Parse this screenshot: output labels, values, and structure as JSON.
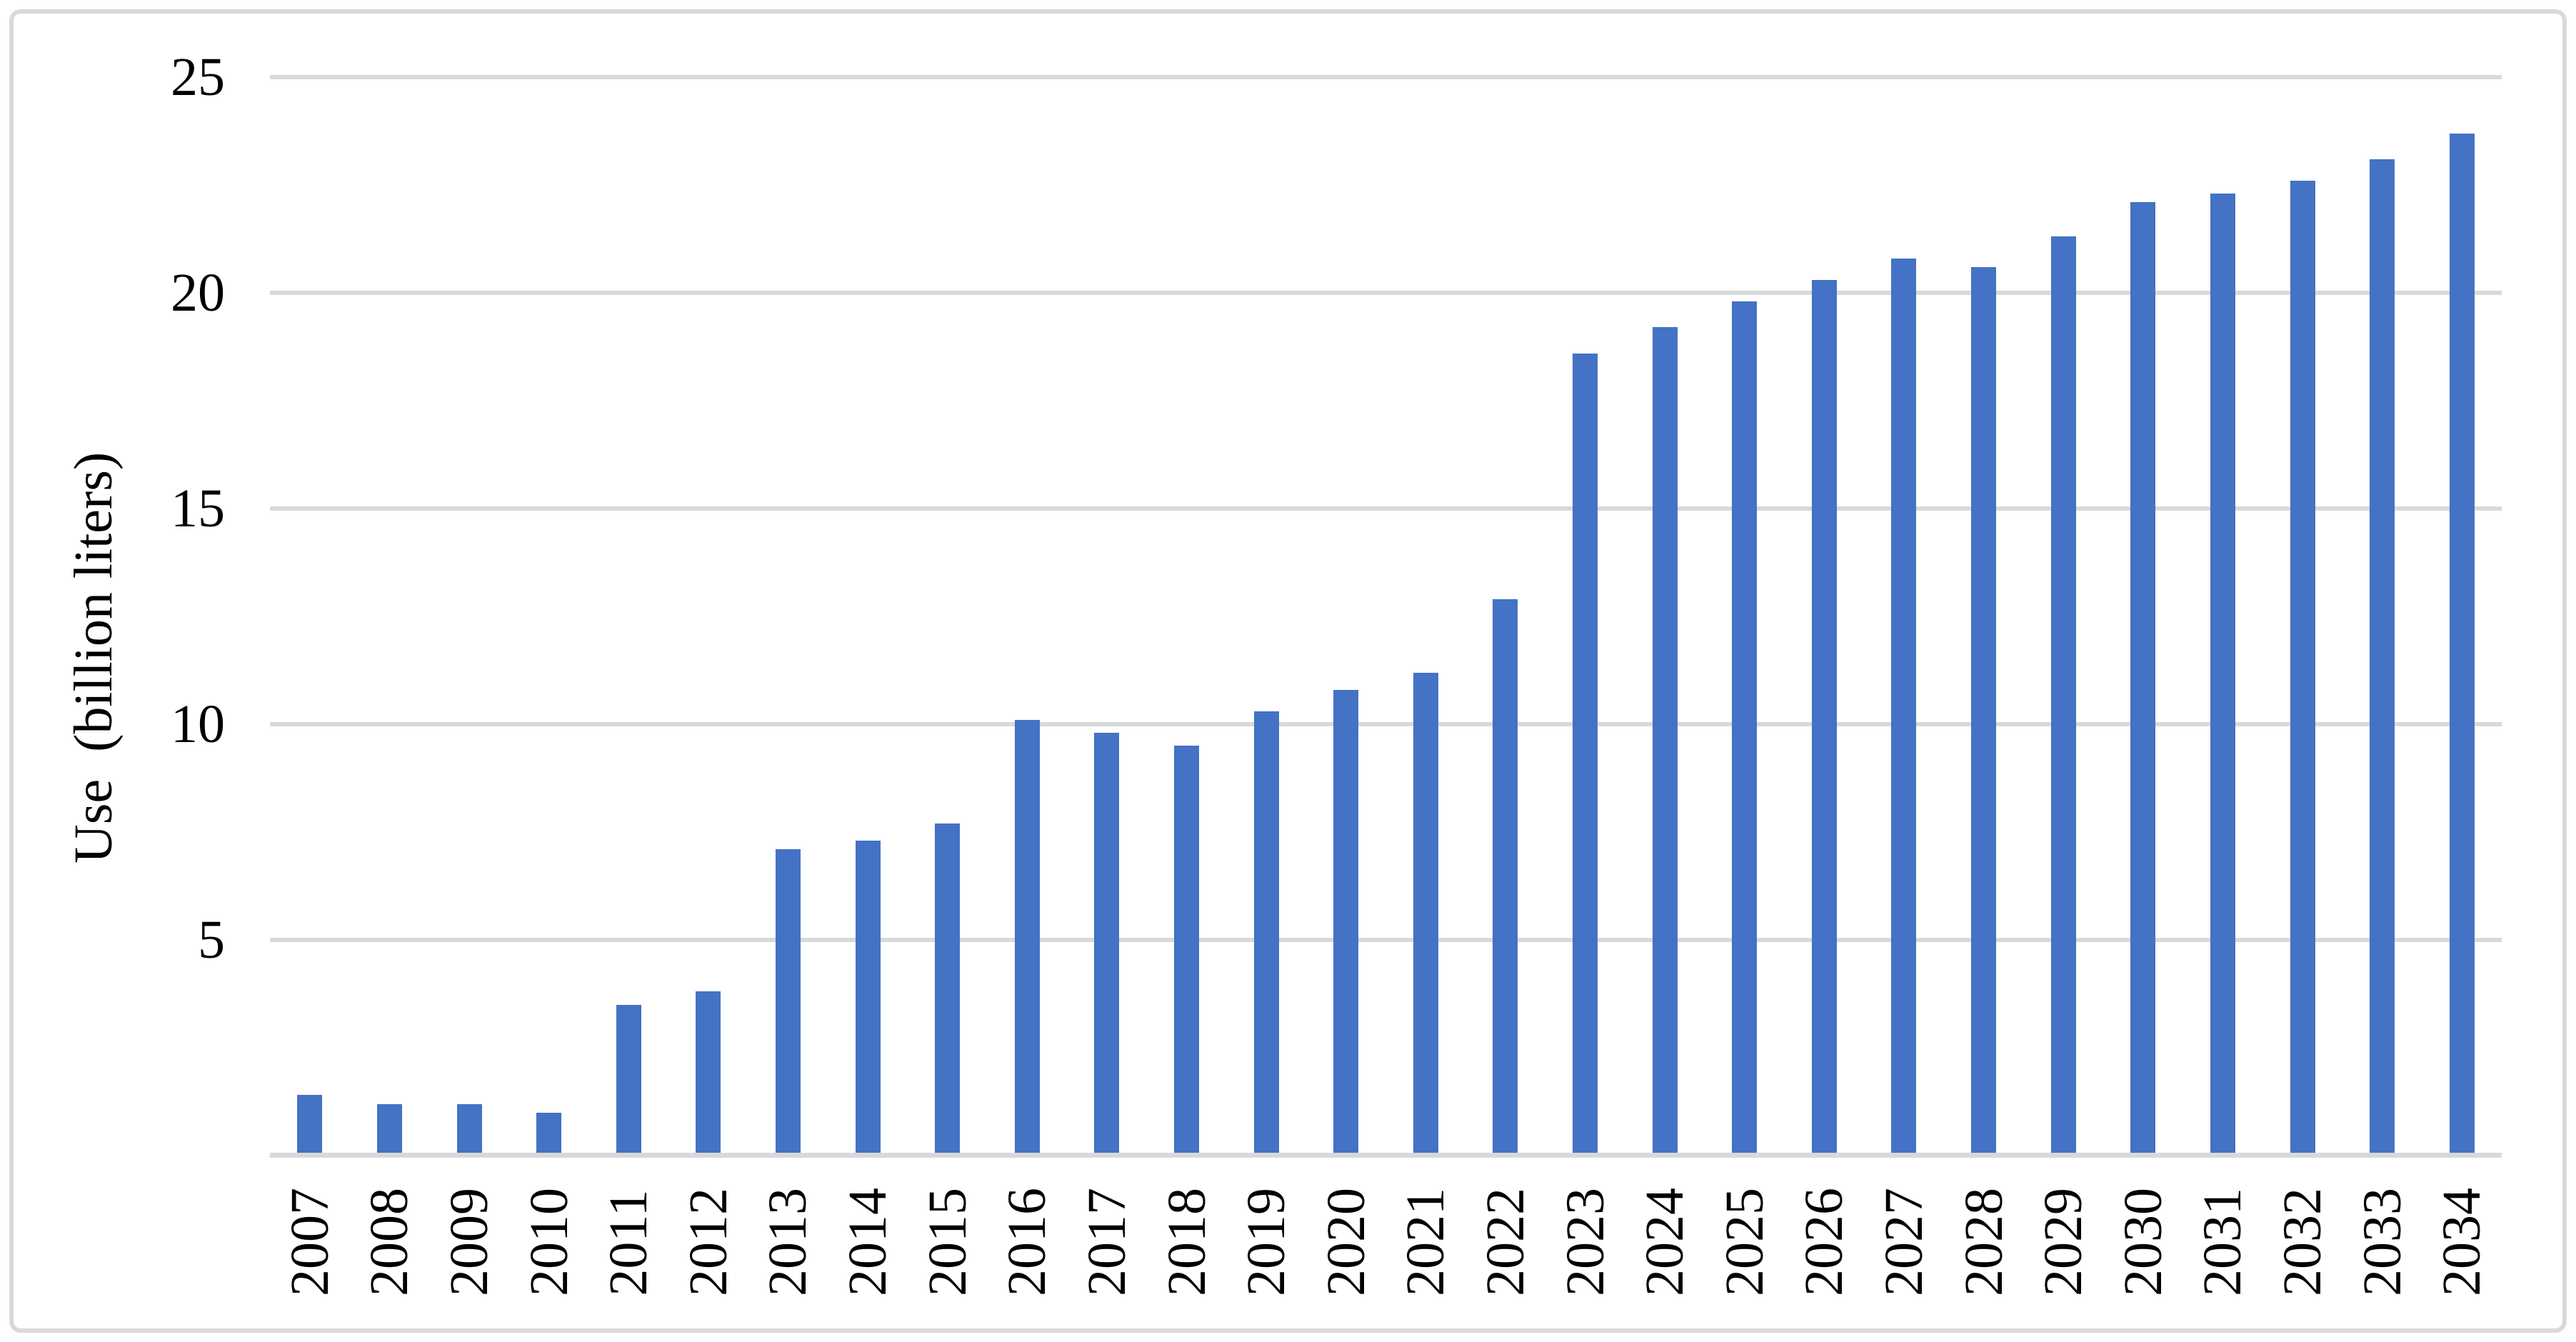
{
  "figure": {
    "background_color": "#FFFFFF",
    "frame_color": "#D9D9D9",
    "text_color": "#000000"
  },
  "chart_data": {
    "type": "bar",
    "title": "",
    "xlabel": "",
    "ylabel": "Use  (billion liters)",
    "categories": [
      "2007",
      "2008",
      "2009",
      "2010",
      "2011",
      "2012",
      "2013",
      "2014",
      "2015",
      "2016",
      "2017",
      "2018",
      "2019",
      "2020",
      "2021",
      "2022",
      "2023",
      "2024",
      "2025",
      "2026",
      "2027",
      "2028",
      "2029",
      "2030",
      "2031",
      "2032",
      "2033",
      "2034"
    ],
    "values": [
      1.4,
      1.2,
      1.2,
      1.0,
      3.5,
      3.8,
      7.1,
      7.3,
      7.7,
      10.1,
      9.8,
      9.5,
      10.3,
      10.8,
      11.2,
      12.9,
      18.6,
      19.2,
      19.8,
      20.3,
      20.8,
      20.6,
      21.3,
      22.1,
      22.3,
      22.6,
      23.1,
      23.7
    ],
    "ylim": [
      0,
      25
    ],
    "yticks": [
      25,
      20,
      15,
      10,
      5
    ],
    "grid": true,
    "legend": "none",
    "bar_color": "#4472C4",
    "gridline_color": "#D9D9D9",
    "axis_line_color": "#D9D9D9"
  }
}
